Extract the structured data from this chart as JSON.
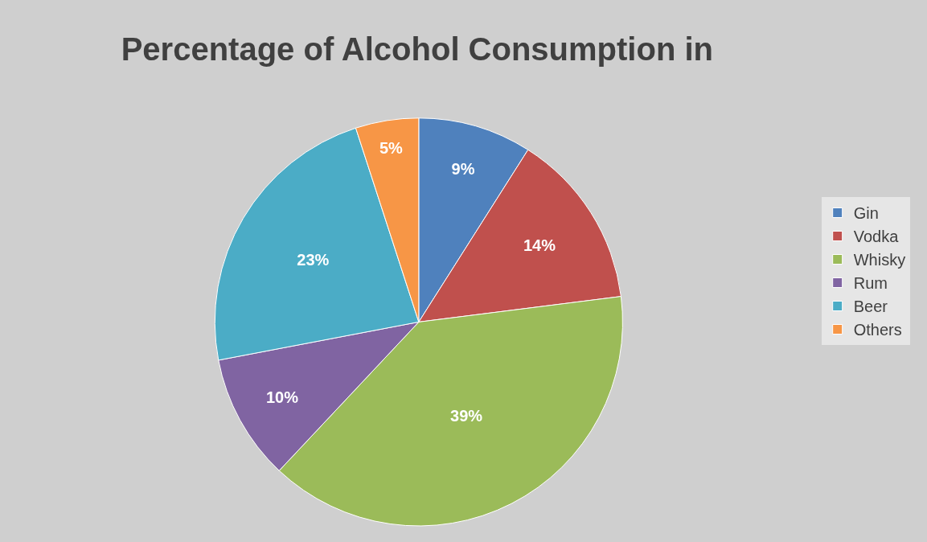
{
  "chart_data": {
    "type": "pie",
    "title": "Percentage of Alcohol Consumption in",
    "categories": [
      "Gin",
      "Vodka",
      "Whisky",
      "Rum",
      "Beer",
      "Others"
    ],
    "values": [
      9,
      14,
      39,
      10,
      23,
      5
    ],
    "value_labels": [
      "9%",
      "14%",
      "39%",
      "10%",
      "23%",
      "5%"
    ],
    "colors": [
      "#4f81bd",
      "#c0504d",
      "#9bbb59",
      "#8064a2",
      "#4bacc6",
      "#f79646"
    ],
    "legend": "right"
  }
}
